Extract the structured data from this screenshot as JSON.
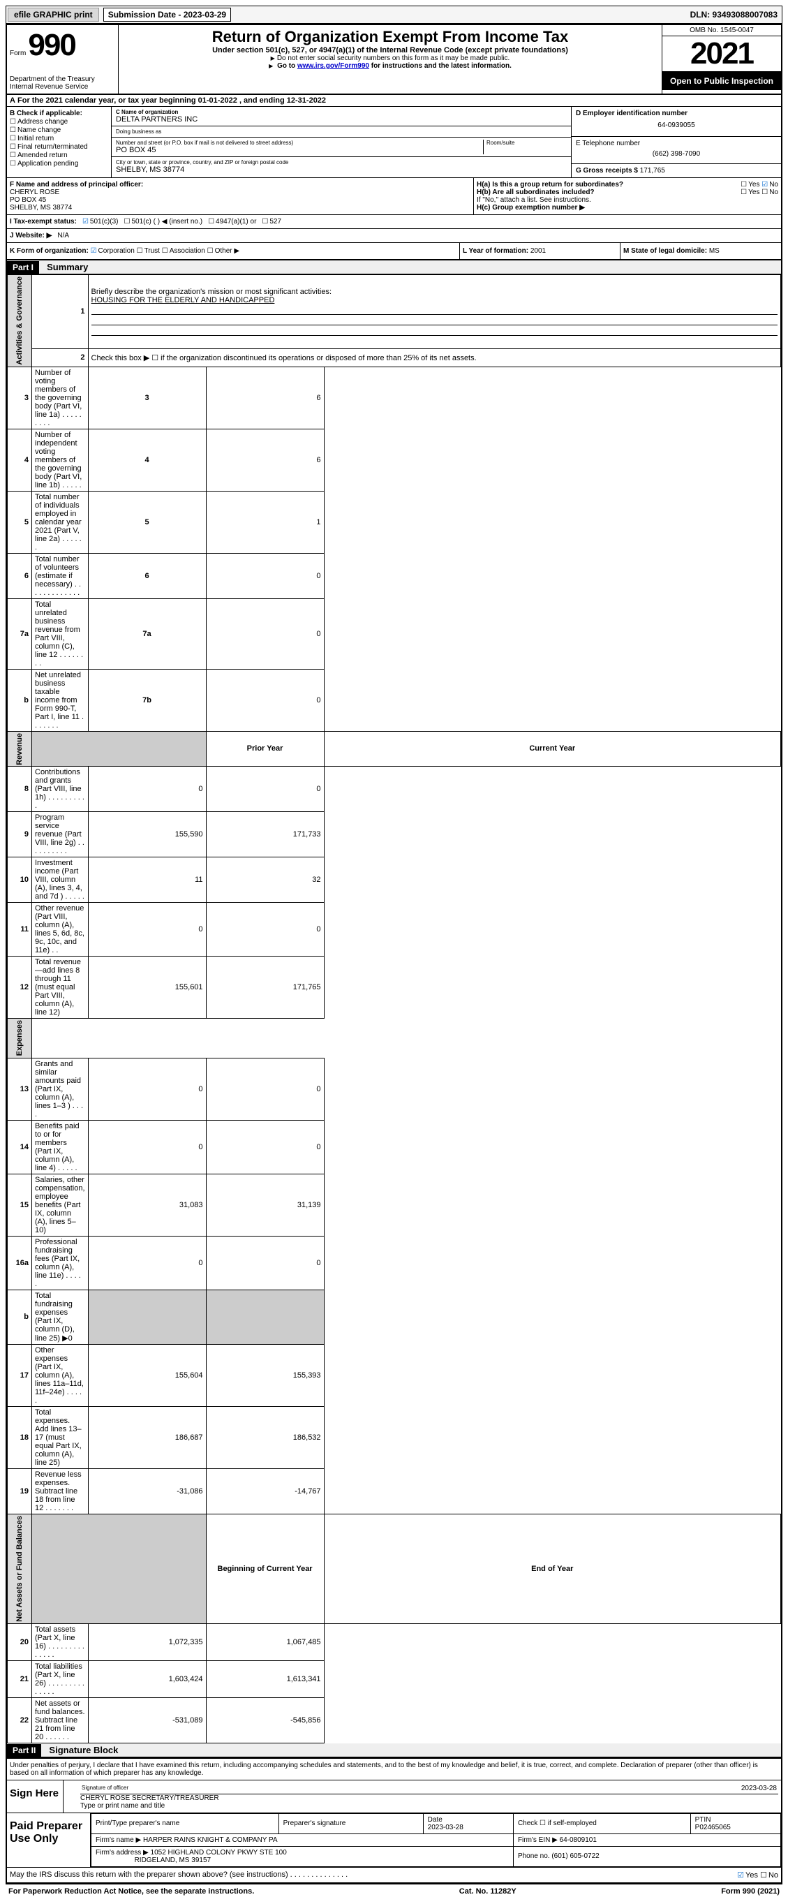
{
  "topbar": {
    "efile": "efile GRAPHIC print",
    "sub_label": "Submission Date - 2023-03-29",
    "dln": "DLN: 93493088007083"
  },
  "header": {
    "form_label": "Form",
    "form_num": "990",
    "dept": "Department of the Treasury\nInternal Revenue Service",
    "title": "Return of Organization Exempt From Income Tax",
    "subtitle": "Under section 501(c), 527, or 4947(a)(1) of the Internal Revenue Code (except private foundations)",
    "sub2": "Do not enter social security numbers on this form as it may be made public.",
    "sub3_prefix": "Go to ",
    "sub3_link": "www.irs.gov/Form990",
    "sub3_suffix": " for instructions and the latest information.",
    "omb": "OMB No. 1545-0047",
    "year": "2021",
    "open": "Open to Public Inspection"
  },
  "rowA": "For the 2021 calendar year, or tax year beginning 01-01-2022  , and ending 12-31-2022",
  "sectionB": {
    "label": "B Check if applicable:",
    "items": [
      "Address change",
      "Name change",
      "Initial return",
      "Final return/terminated",
      "Amended return",
      "Application pending"
    ]
  },
  "sectionC": {
    "name_label": "C Name of organization",
    "name": "DELTA PARTNERS INC",
    "dba_label": "Doing business as",
    "dba": "",
    "addr_label": "Number and street (or P.O. box if mail is not delivered to street address)",
    "room_label": "Room/suite",
    "addr": "PO BOX 45",
    "city_label": "City or town, state or province, country, and ZIP or foreign postal code",
    "city": "SHELBY, MS  38774"
  },
  "sectionD": {
    "ein_label": "D Employer identification number",
    "ein": "64-0939055",
    "phone_label": "E Telephone number",
    "phone": "(662) 398-7090",
    "gross_label": "G Gross receipts $",
    "gross": "171,765"
  },
  "sectionF": {
    "label": "F Name and address of principal officer:",
    "name": "CHERYL ROSE",
    "addr1": "PO BOX 45",
    "addr2": "SHELBY, MS  38774"
  },
  "sectionH": {
    "ha": "H(a)  Is this a group return for subordinates?",
    "ha_yes": "Yes",
    "ha_no": "No",
    "hb": "H(b)  Are all subordinates included?",
    "hb_yes": "Yes",
    "hb_no": "No",
    "hb_note": "If \"No,\" attach a list. See instructions.",
    "hc": "H(c)  Group exemption number ▶"
  },
  "rowI": {
    "label": "I  Tax-exempt status:",
    "o1": "501(c)(3)",
    "o2": "501(c) (  ) ◀ (insert no.)",
    "o3": "4947(a)(1) or",
    "o4": "527"
  },
  "rowJ": {
    "label": "J  Website: ▶",
    "val": "N/A"
  },
  "rowK": {
    "label": "K Form of organization:",
    "o1": "Corporation",
    "o2": "Trust",
    "o3": "Association",
    "o4": "Other ▶",
    "year_label": "L Year of formation:",
    "year": "2001",
    "state_label": "M State of legal domicile:",
    "state": "MS"
  },
  "part1": {
    "header": "Part I",
    "title": "Summary",
    "q1": "Briefly describe the organization's mission or most significant activities:",
    "mission": "HOUSING FOR THE ELDERLY AND HANDICAPPED",
    "q2": "Check this box ▶ ☐  if the organization discontinued its operations or disposed of more than 25% of its net assets.",
    "side_labels": {
      "gov": "Activities & Governance",
      "rev": "Revenue",
      "exp": "Expenses",
      "net": "Net Assets or Fund Balances"
    },
    "hdr_prior": "Prior Year",
    "hdr_curr": "Current Year",
    "hdr_beg": "Beginning of Current Year",
    "hdr_end": "End of Year"
  },
  "lines_gov": [
    {
      "n": "3",
      "d": "Number of voting members of the governing body (Part VI, line 1a)   .    .    .    .    .    .    .    .    .",
      "box": "3",
      "v": "6"
    },
    {
      "n": "4",
      "d": "Number of independent voting members of the governing body (Part VI, line 1b)   .    .    .    .    .",
      "box": "4",
      "v": "6"
    },
    {
      "n": "5",
      "d": "Total number of individuals employed in calendar year 2021 (Part V, line 2a)   .    .    .    .    .    .",
      "box": "5",
      "v": "1"
    },
    {
      "n": "6",
      "d": "Total number of volunteers (estimate if necessary)    .    .    .    .    .    .    .    .    .    .    .    .    .",
      "box": "6",
      "v": "0"
    },
    {
      "n": "7a",
      "d": "Total unrelated business revenue from Part VIII, column (C), line 12   .    .    .    .    .    .    .    .",
      "box": "7a",
      "v": "0"
    },
    {
      "n": "b",
      "d": "Net unrelated business taxable income from Form 990-T, Part I, line 11   .    .    .    .    .    .    .",
      "box": "7b",
      "v": "0"
    }
  ],
  "lines_rev": [
    {
      "n": "8",
      "d": "Contributions and grants (Part VIII, line 1h)   .    .    .    .    .    .    .    .    .    .",
      "p": "0",
      "c": "0"
    },
    {
      "n": "9",
      "d": "Program service revenue (Part VIII, line 2g)   .    .    .    .    .    .    .    .    .    .",
      "p": "155,590",
      "c": "171,733"
    },
    {
      "n": "10",
      "d": "Investment income (Part VIII, column (A), lines 3, 4, and 7d )   .    .    .    .    .",
      "p": "11",
      "c": "32"
    },
    {
      "n": "11",
      "d": "Other revenue (Part VIII, column (A), lines 5, 6d, 8c, 9c, 10c, and 11e)   .    .",
      "p": "0",
      "c": "0"
    },
    {
      "n": "12",
      "d": "Total revenue—add lines 8 through 11 (must equal Part VIII, column (A), line 12)",
      "p": "155,601",
      "c": "171,765"
    }
  ],
  "lines_exp": [
    {
      "n": "13",
      "d": "Grants and similar amounts paid (Part IX, column (A), lines 1–3 )   .    .    .    .",
      "p": "0",
      "c": "0"
    },
    {
      "n": "14",
      "d": "Benefits paid to or for members (Part IX, column (A), line 4)   .    .    .    .    .",
      "p": "0",
      "c": "0"
    },
    {
      "n": "15",
      "d": "Salaries, other compensation, employee benefits (Part IX, column (A), lines 5–10)",
      "p": "31,083",
      "c": "31,139"
    },
    {
      "n": "16a",
      "d": "Professional fundraising fees (Part IX, column (A), line 11e)   .    .    .    .    .",
      "p": "0",
      "c": "0"
    },
    {
      "n": "b",
      "d": "Total fundraising expenses (Part IX, column (D), line 25) ▶0",
      "p": "",
      "c": "",
      "shade": true
    },
    {
      "n": "17",
      "d": "Other expenses (Part IX, column (A), lines 11a–11d, 11f–24e)   .    .    .    .    .",
      "p": "155,604",
      "c": "155,393"
    },
    {
      "n": "18",
      "d": "Total expenses. Add lines 13–17 (must equal Part IX, column (A), line 25)",
      "p": "186,687",
      "c": "186,532"
    },
    {
      "n": "19",
      "d": "Revenue less expenses. Subtract line 18 from line 12   .    .    .    .    .    .    .",
      "p": "-31,086",
      "c": "-14,767"
    }
  ],
  "lines_net": [
    {
      "n": "20",
      "d": "Total assets (Part X, line 16)   .    .    .    .    .    .    .    .    .    .    .    .    .    .",
      "p": "1,072,335",
      "c": "1,067,485"
    },
    {
      "n": "21",
      "d": "Total liabilities (Part X, line 26)   .    .    .    .    .    .    .    .    .    .    .    .    .    .",
      "p": "1,603,424",
      "c": "1,613,341"
    },
    {
      "n": "22",
      "d": "Net assets or fund balances. Subtract line 21 from line 20   .    .    .    .    .    .",
      "p": "-531,089",
      "c": "-545,856"
    }
  ],
  "part2": {
    "header": "Part II",
    "title": "Signature Block",
    "decl": "Under penalties of perjury, I declare that I have examined this return, including accompanying schedules and statements, and to the best of my knowledge and belief, it is true, correct, and complete. Declaration of preparer (other than officer) is based on all information of which preparer has any knowledge."
  },
  "sign": {
    "left": "Sign Here",
    "sig_label": "Signature of officer",
    "date": "2023-03-28",
    "date_label": "Date",
    "name": "CHERYL ROSE  SECRETARY/TREASURER",
    "name_label": "Type or print name and title"
  },
  "preparer": {
    "left": "Paid Preparer Use Only",
    "h1": "Print/Type preparer's name",
    "h2": "Preparer's signature",
    "h3": "Date",
    "h3v": "2023-03-28",
    "h4": "Check ☐ if self-employed",
    "h5": "PTIN",
    "h5v": "P02465065",
    "firm_label": "Firm's name    ▶",
    "firm": "HARPER RAINS KNIGHT & COMPANY PA",
    "ein_label": "Firm's EIN ▶",
    "ein": "64-0809101",
    "addr_label": "Firm's address ▶",
    "addr1": "1052 HIGHLAND COLONY PKWY STE 100",
    "addr2": "RIDGELAND, MS  39157",
    "phone_label": "Phone no.",
    "phone": "(601) 605-0722"
  },
  "discuss": {
    "q": "May the IRS discuss this return with the preparer shown above? (see instructions)   .    .    .    .    .    .    .    .    .    .    .    .    .    .",
    "yes": "Yes",
    "no": "No"
  },
  "footer": {
    "left": "For Paperwork Reduction Act Notice, see the separate instructions.",
    "mid": "Cat. No. 11282Y",
    "right": "Form 990 (2021)"
  },
  "colors": {
    "bg": "#ffffff",
    "border": "#000000",
    "shade": "#cccccc",
    "light_shade": "#dcdcdc",
    "link": "#0000cc",
    "check": "#0066cc"
  }
}
